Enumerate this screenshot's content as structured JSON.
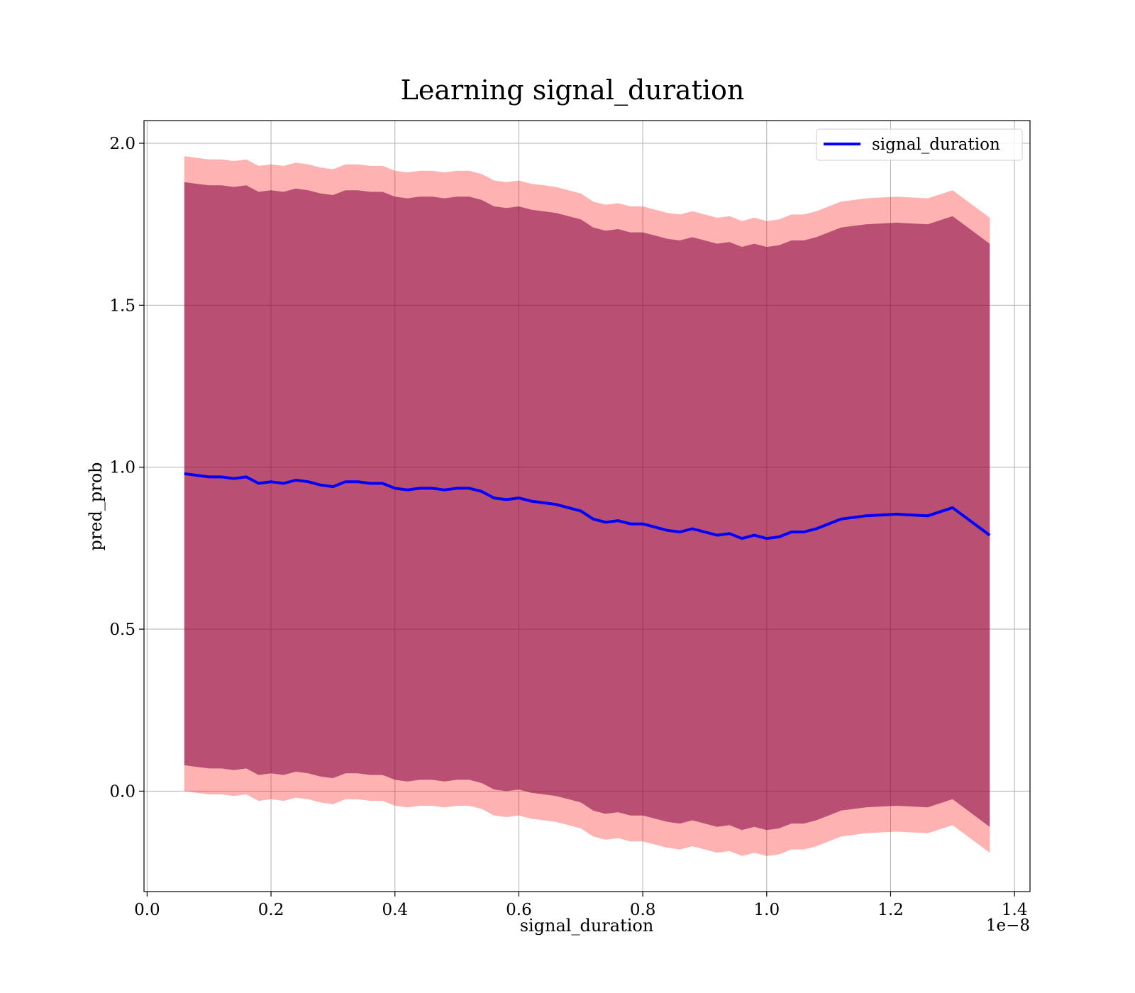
{
  "chart_data": {
    "type": "line",
    "title": "Learning signal_duration",
    "xlabel": "signal_duration",
    "ylabel": "pred_prob",
    "x_offset_label": "1e−8",
    "xlim": [
      -0.005,
      1.425
    ],
    "ylim": [
      -0.31,
      2.07
    ],
    "xticks": [
      0.0,
      0.2,
      0.4,
      0.6,
      0.8,
      1.0,
      1.2,
      1.4
    ],
    "xtick_labels": [
      "0.0",
      "0.2",
      "0.4",
      "0.6",
      "0.8",
      "1.0",
      "1.2",
      "1.4"
    ],
    "yticks": [
      0.0,
      0.5,
      1.0,
      1.5,
      2.0
    ],
    "ytick_labels": [
      "0.0",
      "0.5",
      "1.0",
      "1.5",
      "2.0"
    ],
    "grid": true,
    "legend": {
      "position": "top-right",
      "entries": [
        "signal_duration"
      ]
    },
    "colors": {
      "line": "#0000ff",
      "outer_band": "#ff0000",
      "inner_band": "#800040",
      "overlap_hint": "#b8860b"
    },
    "series": [
      {
        "name": "signal_duration",
        "x": [
          0.06,
          0.08,
          0.1,
          0.12,
          0.14,
          0.16,
          0.18,
          0.2,
          0.22,
          0.24,
          0.26,
          0.28,
          0.3,
          0.32,
          0.34,
          0.36,
          0.38,
          0.4,
          0.42,
          0.44,
          0.46,
          0.48,
          0.5,
          0.52,
          0.54,
          0.56,
          0.58,
          0.6,
          0.62,
          0.64,
          0.66,
          0.68,
          0.7,
          0.72,
          0.74,
          0.76,
          0.78,
          0.8,
          0.82,
          0.84,
          0.86,
          0.88,
          0.9,
          0.92,
          0.94,
          0.96,
          0.98,
          1.0,
          1.02,
          1.04,
          1.06,
          1.08,
          1.1,
          1.12,
          1.16,
          1.21,
          1.26,
          1.3,
          1.36
        ],
        "y": [
          0.98,
          0.975,
          0.97,
          0.97,
          0.965,
          0.97,
          0.95,
          0.955,
          0.95,
          0.96,
          0.955,
          0.945,
          0.94,
          0.955,
          0.955,
          0.95,
          0.95,
          0.935,
          0.93,
          0.935,
          0.935,
          0.93,
          0.935,
          0.935,
          0.925,
          0.905,
          0.9,
          0.905,
          0.895,
          0.89,
          0.885,
          0.875,
          0.865,
          0.84,
          0.83,
          0.835,
          0.825,
          0.825,
          0.815,
          0.805,
          0.8,
          0.81,
          0.8,
          0.79,
          0.795,
          0.78,
          0.79,
          0.78,
          0.785,
          0.8,
          0.8,
          0.81,
          0.825,
          0.84,
          0.85,
          0.855,
          0.85,
          0.875,
          0.79
        ],
        "inner_band_half_width": 0.9,
        "outer_band_half_width": 0.98
      }
    ]
  }
}
